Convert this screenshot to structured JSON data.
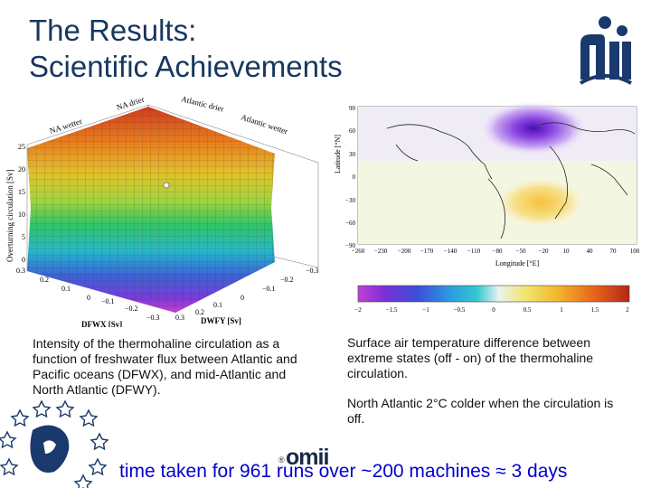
{
  "slide": {
    "title_line1": "The Results:",
    "title_line2": "Scientific Achievements",
    "caption_left": "Intensity of the thermohaline circulation as a function of freshwater flux between Atlantic and Pacific oceans (DFWX), and mid-Atlantic and North Atlantic (DFWY).",
    "caption_right_1": "Surface air temperature difference between extreme states (off - on) of the thermohaline circulation.",
    "caption_right_2": "North Atlantic 2°C colder when the circulation is off.",
    "bottom_line": "time taken for 961 runs over ~200 machines ≈ 3 days",
    "omii_text": "omii",
    "copyright": "®"
  },
  "plot3d": {
    "corner_labels": [
      "NA drier",
      "Atlantic drier",
      "NA wetter",
      "Atlantic wetter"
    ],
    "zlabel": "Overturning circulation [Sv]",
    "zticks": [
      "0",
      "5",
      "10",
      "15",
      "20",
      "25"
    ],
    "xlabel": "DFWX [Sv]",
    "ylabel": "DWFY [Sv]",
    "xticks": [
      "0.3",
      "0.2",
      "0.1",
      "0",
      "−0.1",
      "−0.2",
      "−0.3"
    ],
    "yticks": [
      "−0.3",
      "−0.2",
      "−0.1",
      "0",
      "0.1",
      "0.2",
      "0.3"
    ]
  },
  "map": {
    "ylabel": "Latitude [°N]",
    "xlabel": "Longitude [°E]",
    "yticks": [
      "90",
      "60",
      "30",
      "0",
      "−30",
      "−60",
      "−90"
    ],
    "xticks": [
      "−260",
      "−230",
      "−200",
      "−170",
      "−140",
      "−110",
      "−80",
      "−50",
      "−20",
      "10",
      "40",
      "70",
      "100"
    ]
  },
  "colorbar": {
    "ticks": [
      "−2",
      "−1.5",
      "−1",
      "−0.5",
      "0",
      "0.5",
      "1",
      "1.5",
      "2"
    ]
  }
}
